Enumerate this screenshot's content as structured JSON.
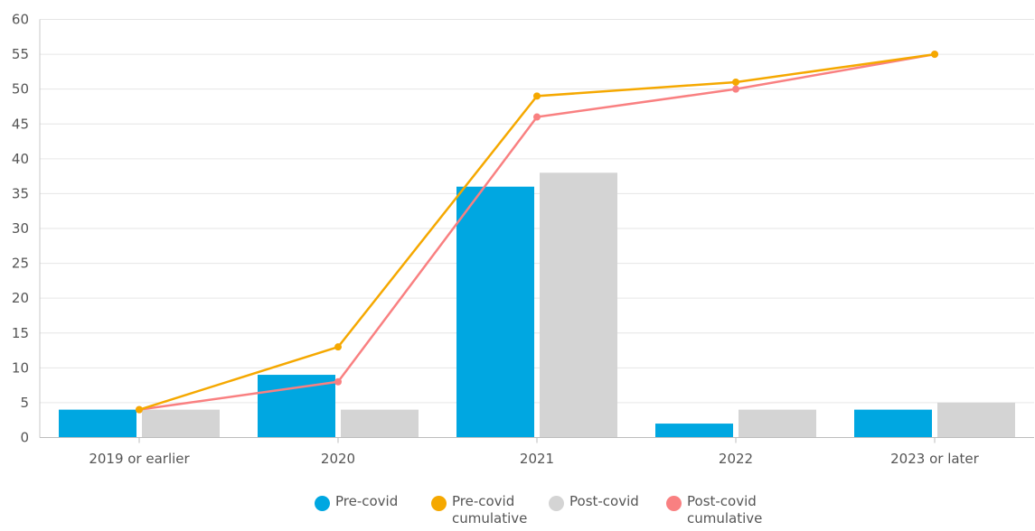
{
  "chart_data": {
    "type": "bar",
    "categories": [
      "2019 or earlier",
      "2020",
      "2021",
      "2022",
      "2023 or later"
    ],
    "series": [
      {
        "name": "Pre-covid",
        "type": "bar",
        "color": "#00a7e1",
        "values": [
          4,
          9,
          36,
          2,
          4
        ]
      },
      {
        "name": "Post-covid",
        "type": "bar",
        "color": "#d4d4d4",
        "values": [
          4,
          4,
          38,
          4,
          5
        ]
      },
      {
        "name": "Pre-covid cumulative",
        "type": "line",
        "color": "#f5a800",
        "values": [
          4,
          13,
          49,
          51,
          55
        ]
      },
      {
        "name": "Post-covid cumulative",
        "type": "line",
        "color": "#f98081",
        "values": [
          4,
          8,
          46,
          50,
          55
        ]
      }
    ],
    "ylim": [
      0,
      60
    ],
    "yticks": [
      0,
      5,
      10,
      15,
      20,
      25,
      30,
      35,
      40,
      45,
      50,
      55,
      60
    ],
    "grid": true,
    "legend_position": "bottom"
  },
  "legend": {
    "items": [
      {
        "label": "Pre-covid",
        "color": "#00a7e1"
      },
      {
        "label": "Pre-covid\ncumulative",
        "color": "#f5a800"
      },
      {
        "label": "Post-covid",
        "color": "#d4d4d4"
      },
      {
        "label": "Post-covid\ncumulative",
        "color": "#f98081"
      }
    ]
  }
}
